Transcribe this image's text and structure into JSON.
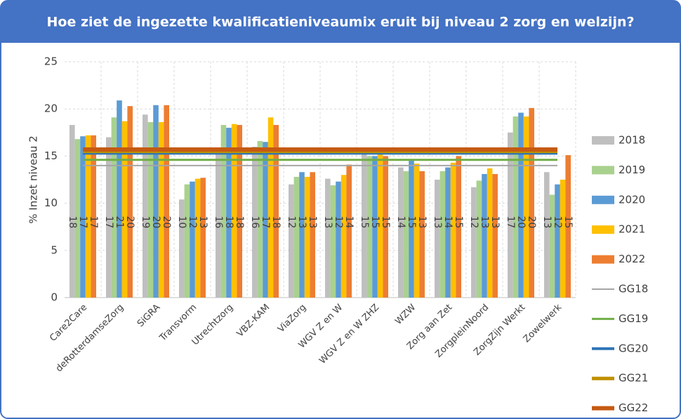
{
  "chart_data": {
    "type": "bar",
    "title": "Hoe ziet de ingezette kwalificatieniveaumix eruit bij niveau 2 zorg en welzijn?",
    "y_label": "% Inzet niveau 2",
    "categories": [
      "Care2Care",
      "deRotterdamseZorg",
      "SiGRA",
      "Transvorm",
      "Utrechtzorg",
      "VBZ-KAM",
      "ViaZorg",
      "WGV Z en W",
      "WGV Z en W ZHZ",
      "WZW",
      "Zorg aan Zet",
      "ZorgpleinNoord",
      "ZorgZijn Werkt",
      "Zowelwerk"
    ],
    "ylim": [
      0,
      25
    ],
    "yticks": [
      0,
      5,
      10,
      15,
      20,
      25
    ],
    "grid": true,
    "series": [
      {
        "name": "2018",
        "color": "#bfbfbf",
        "values": [
          18.3,
          17.0,
          19.4,
          10.4,
          15.5,
          16.0,
          12.0,
          12.6,
          15.2,
          13.8,
          12.5,
          11.7,
          17.5,
          13.3
        ],
        "value_labels": [
          "18",
          "17",
          "19",
          "10",
          "16",
          "16",
          "12",
          "13",
          "15",
          "14",
          "13",
          "12",
          "17",
          "13"
        ]
      },
      {
        "name": "2019",
        "color": "#a9d18e",
        "values": [
          16.8,
          19.1,
          18.6,
          12.0,
          18.3,
          16.6,
          12.8,
          11.9,
          15.0,
          13.4,
          13.4,
          12.4,
          19.2,
          10.9
        ]
      },
      {
        "name": "2020",
        "color": "#5b9bd5",
        "values": [
          17.1,
          20.9,
          20.4,
          12.3,
          18.0,
          16.5,
          13.3,
          12.3,
          15.0,
          14.6,
          13.8,
          13.1,
          19.6,
          12.0
        ],
        "value_labels": [
          "17",
          "21",
          "20",
          "12",
          "18",
          "17",
          "13",
          "12",
          "15",
          "15",
          "14",
          "13",
          "20",
          "12"
        ]
      },
      {
        "name": "2021",
        "color": "#ffc000",
        "values": [
          17.2,
          18.7,
          18.6,
          12.6,
          18.4,
          19.1,
          12.8,
          13.0,
          15.3,
          14.2,
          14.3,
          13.7,
          19.2,
          12.5
        ]
      },
      {
        "name": "2022",
        "color": "#ed7d31",
        "values": [
          17.2,
          20.3,
          20.4,
          12.7,
          18.3,
          18.3,
          13.3,
          14.1,
          15.0,
          13.4,
          15.0,
          13.1,
          20.1,
          15.1
        ],
        "value_labels": [
          "17",
          "20",
          "20",
          "13",
          "18",
          "18",
          "13",
          "14",
          "15",
          "13",
          "15",
          "13",
          "20",
          "15"
        ]
      }
    ],
    "reference_lines": [
      {
        "name": "GG18",
        "color": "#a5a5a5",
        "value": 14.0
      },
      {
        "name": "GG19",
        "color": "#70ad47",
        "value": 14.6
      },
      {
        "name": "GG20",
        "color": "#2e75b6",
        "value": 15.3
      },
      {
        "name": "GG21",
        "color": "#bf9000",
        "value": 15.5
      },
      {
        "name": "GG22",
        "color": "#c55a11",
        "value": 15.7
      }
    ]
  }
}
